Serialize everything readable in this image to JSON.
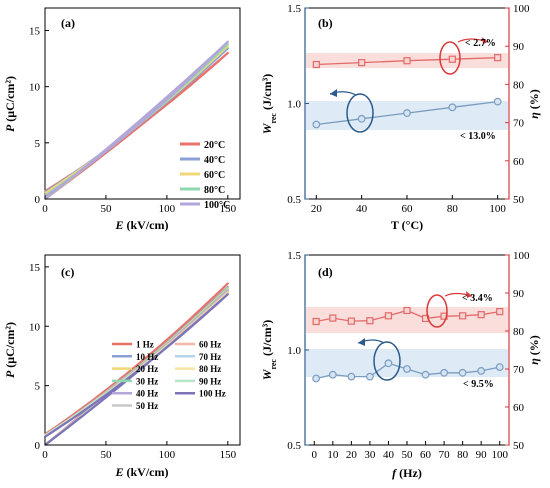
{
  "panels": {
    "a": {
      "label": "(a)",
      "ylabel_main": "P",
      "ylabel_unit": "(μC/cm²)",
      "xlabel_main": "E",
      "xlabel_unit": "(kV/cm)",
      "xticks": [
        "0",
        "50",
        "100",
        "150"
      ],
      "yticks": [
        "0",
        "5",
        "10",
        "15"
      ]
    },
    "b": {
      "label": "(b)",
      "xlabel": "T (°C)",
      "ylabel_left_main": "W",
      "ylabel_left_sub": "rec",
      "ylabel_left_unit": "(J/cm³)",
      "ylabel_right_main": "η",
      "ylabel_right_unit": "(%)",
      "xticks": [
        "20",
        "40",
        "60",
        "80",
        "100"
      ],
      "yticks_left": [
        "0.5",
        "1.0",
        "1.5"
      ],
      "yticks_right": [
        "50",
        "60",
        "70",
        "80",
        "90",
        "100"
      ],
      "annot_eta": "< 2.7%",
      "annot_w": "< 13.0%"
    },
    "c": {
      "label": "(c)",
      "ylabel_main": "P",
      "ylabel_unit": "(μC/cm²)",
      "xlabel_main": "E",
      "xlabel_unit": "(kV/cm)",
      "xticks": [
        "0",
        "50",
        "100",
        "150"
      ],
      "yticks": [
        "0",
        "5",
        "10",
        "15"
      ]
    },
    "d": {
      "label": "(d)",
      "xlabel_main": "f",
      "xlabel_unit": "(Hz)",
      "ylabel_left_main": "W",
      "ylabel_left_sub": "rec",
      "ylabel_left_unit": "(J/cm³)",
      "ylabel_right_main": "η",
      "ylabel_right_unit": "(%)",
      "xticks": [
        "0",
        "10",
        "20",
        "30",
        "40",
        "50",
        "60",
        "70",
        "80",
        "90",
        "100"
      ],
      "yticks_left": [
        "0.5",
        "1.0",
        "1.5"
      ],
      "yticks_right": [
        "50",
        "60",
        "70",
        "80",
        "90",
        "100"
      ],
      "annot_eta": "< 3.4%",
      "annot_w": "< 9.5%"
    }
  },
  "chart_data": [
    {
      "type": "line",
      "panel": "a",
      "xlabel": "E (kV/cm)",
      "ylabel": "P (μC/cm²)",
      "xlim": [
        0,
        160
      ],
      "ylim": [
        0,
        17
      ],
      "series": [
        {
          "name": "20°C",
          "color": "#e8726a",
          "pmax": 13.0,
          "pr": 0.7,
          "emax": 150
        },
        {
          "name": "40°C",
          "color": "#8aa0d6",
          "pmax": 13.4,
          "pr": 0.6,
          "emax": 150
        },
        {
          "name": "60°C",
          "color": "#f0d77a",
          "pmax": 13.6,
          "pr": 0.5,
          "emax": 150
        },
        {
          "name": "80°C",
          "color": "#8fd9b0",
          "pmax": 13.8,
          "pr": 0.3,
          "emax": 150
        },
        {
          "name": "100°C",
          "color": "#b3a6d8",
          "pmax": 14.0,
          "pr": 0.2,
          "emax": 150
        }
      ]
    },
    {
      "type": "line",
      "panel": "b",
      "xlabel": "T (°C)",
      "ylabel": "Wrec (J/cm³)",
      "y2label": "η (%)",
      "xlim": [
        15,
        105
      ],
      "ylim": [
        0.5,
        1.5
      ],
      "y2lim": [
        50,
        100
      ],
      "x": [
        20,
        40,
        60,
        80,
        100
      ],
      "series": [
        {
          "name": "Wrec",
          "axis": "left",
          "color": "#7a9cc0",
          "values": [
            0.89,
            0.92,
            0.95,
            0.98,
            1.01
          ]
        },
        {
          "name": "η",
          "axis": "right",
          "color": "#e36a6a",
          "values": [
            85.2,
            85.7,
            86.2,
            86.6,
            87.0
          ]
        }
      ]
    },
    {
      "type": "line",
      "panel": "c",
      "xlabel": "E (kV/cm)",
      "ylabel": "P (μC/cm²)",
      "xlim": [
        0,
        160
      ],
      "ylim": [
        0,
        16
      ],
      "series": [
        {
          "name": "1 Hz",
          "color": "#e8726a",
          "pmax": 13.6,
          "pr": 0.9,
          "emax": 150
        },
        {
          "name": "10 Hz",
          "color": "#8aa0d6",
          "pmax": 13.3,
          "pr": 0.8,
          "emax": 150
        },
        {
          "name": "20 Hz",
          "color": "#f0d77a",
          "pmax": 13.2,
          "pr": 0.8,
          "emax": 150
        },
        {
          "name": "30 Hz",
          "color": "#8fd9b0",
          "pmax": 13.1,
          "pr": 0.8,
          "emax": 150
        },
        {
          "name": "40 Hz",
          "color": "#b3a6d8",
          "pmax": 13.0,
          "pr": 0.8,
          "emax": 150
        },
        {
          "name": "50 Hz",
          "color": "#c8c8c8",
          "pmax": 12.9,
          "pr": 0.8,
          "emax": 150
        },
        {
          "name": "60 Hz",
          "color": "#f2b8a8",
          "pmax": 12.9,
          "pr": 0.8,
          "emax": 150
        },
        {
          "name": "70 Hz",
          "color": "#b5d3ea",
          "pmax": 12.8,
          "pr": 0.8,
          "emax": 150
        },
        {
          "name": "80 Hz",
          "color": "#f5e3a5",
          "pmax": 12.8,
          "pr": 0.8,
          "emax": 150
        },
        {
          "name": "90 Hz",
          "color": "#b8e6c9",
          "pmax": 12.7,
          "pr": 0.8,
          "emax": 150
        },
        {
          "name": "100 Hz",
          "color": "#7d73b8",
          "pmax": 12.7,
          "pr": 0.7,
          "emax": 150
        }
      ]
    },
    {
      "type": "line",
      "panel": "d",
      "xlabel": "f (Hz)",
      "ylabel": "Wrec (J/cm³)",
      "y2label": "η (%)",
      "xlim": [
        -5,
        105
      ],
      "ylim": [
        0.5,
        1.5
      ],
      "y2lim": [
        50,
        100
      ],
      "x": [
        1,
        10,
        20,
        30,
        40,
        50,
        60,
        70,
        80,
        90,
        100
      ],
      "series": [
        {
          "name": "Wrec",
          "axis": "left",
          "color": "#7a9cc0",
          "values": [
            0.85,
            0.87,
            0.86,
            0.86,
            0.93,
            0.9,
            0.87,
            0.88,
            0.88,
            0.89,
            0.91
          ]
        },
        {
          "name": "η",
          "axis": "right",
          "color": "#e36a6a",
          "values": [
            82.5,
            83.4,
            82.6,
            82.7,
            84.0,
            85.4,
            83.3,
            83.9,
            84.0,
            84.3,
            85.1
          ]
        }
      ]
    }
  ]
}
